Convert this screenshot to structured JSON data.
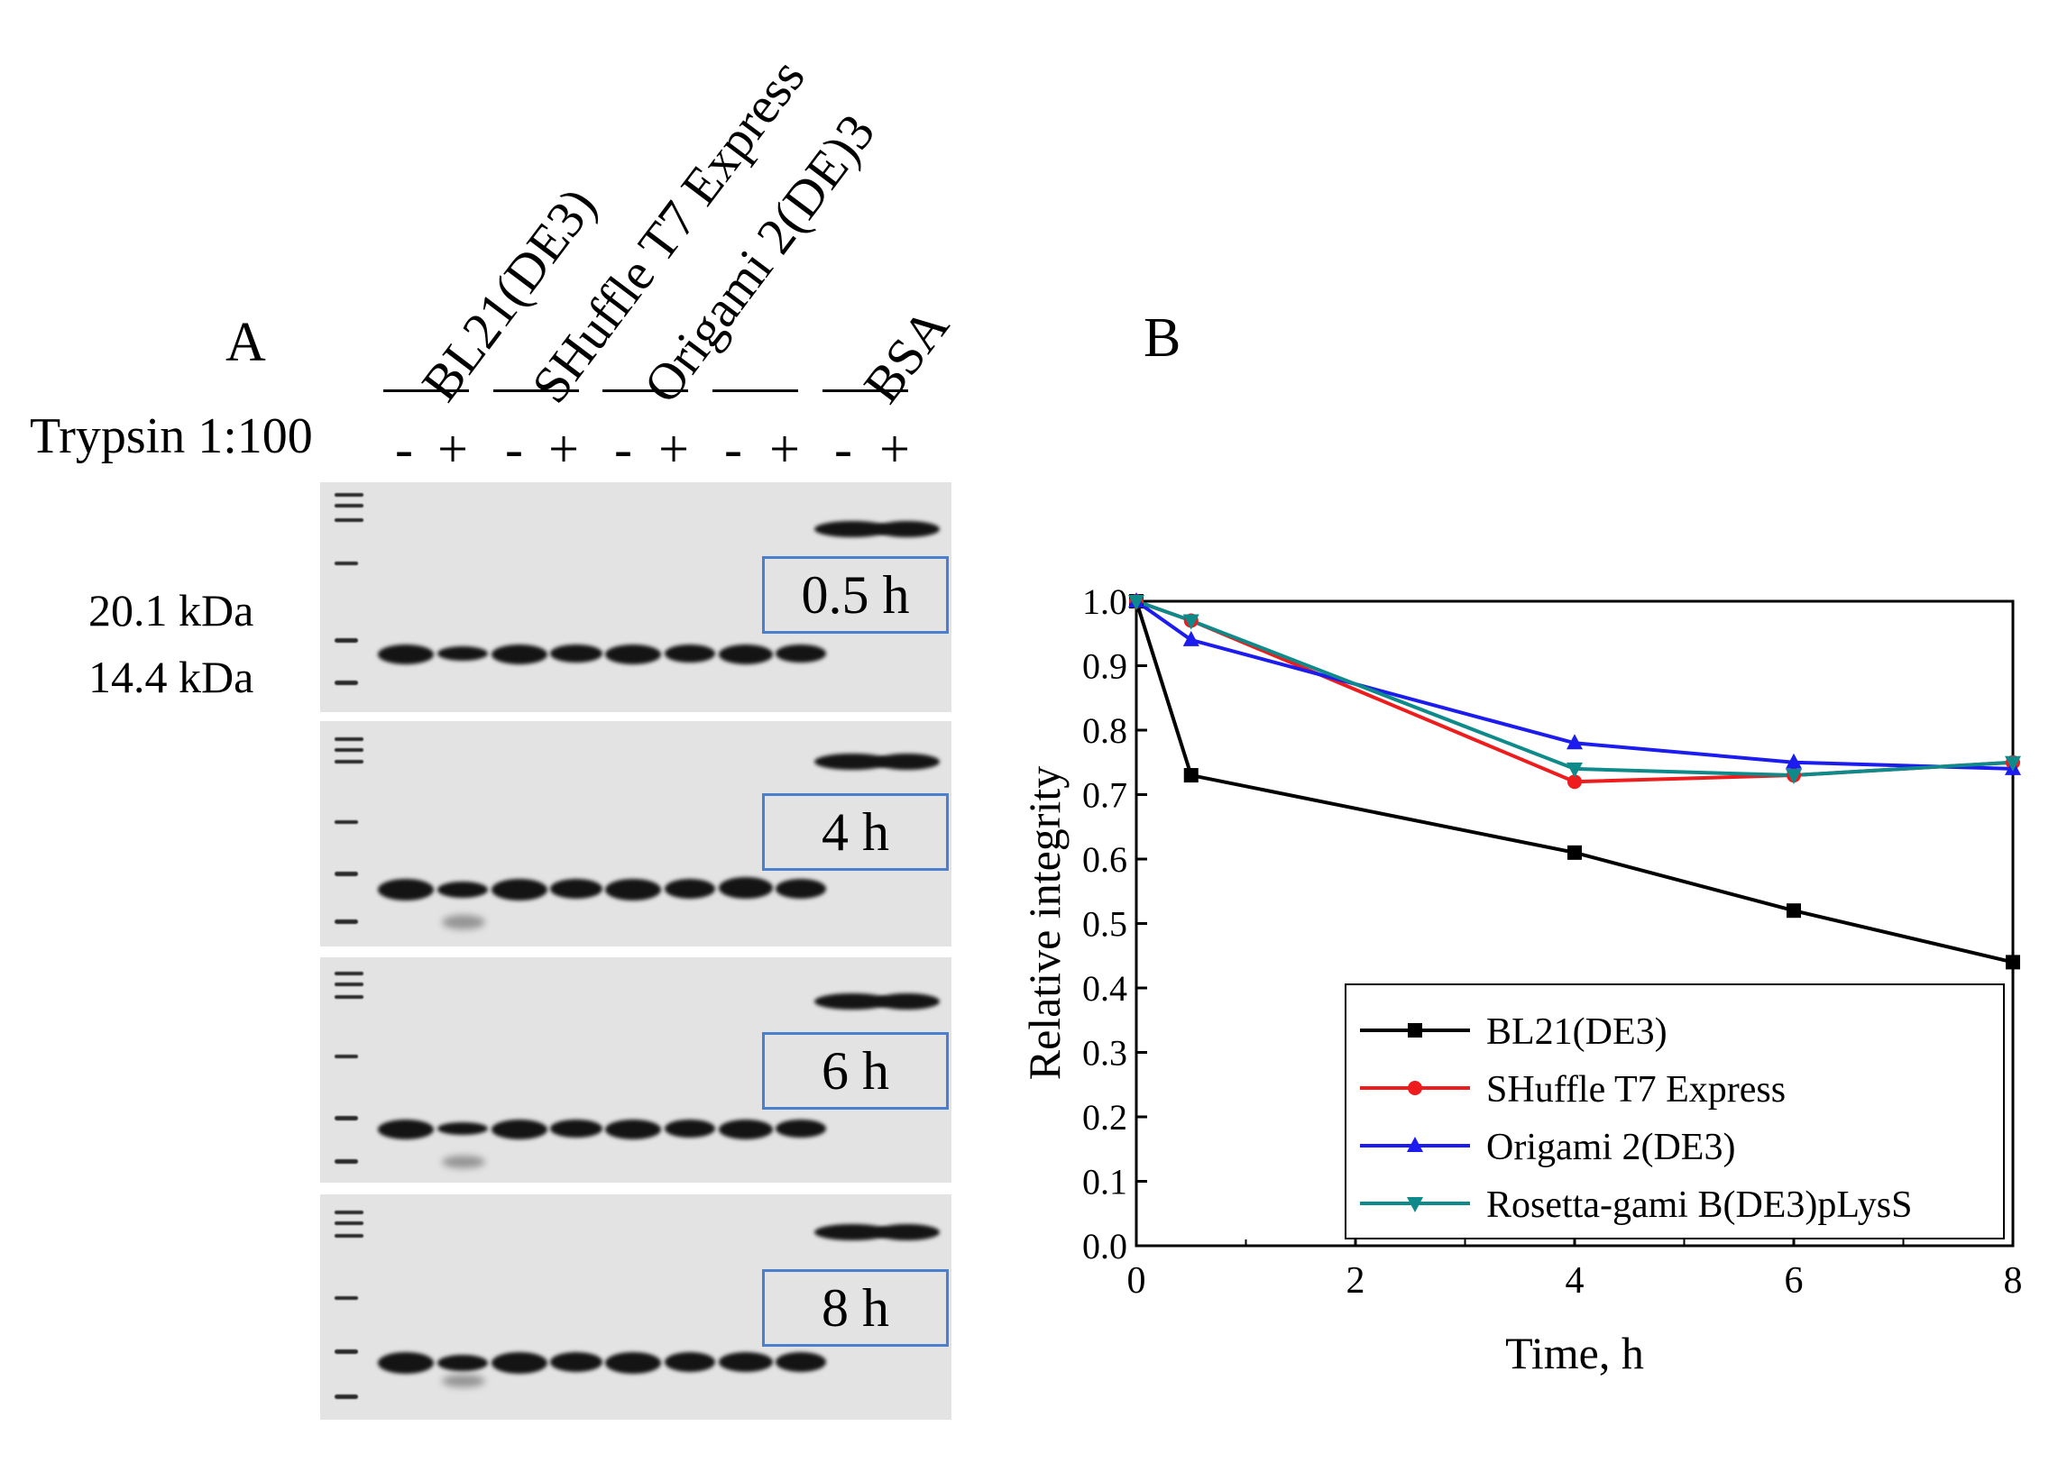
{
  "panel_a": {
    "letter": "A",
    "strains": [
      "BL21(DE3)",
      "SHuffle T7 Express",
      "Origami 2(DE)3",
      "",
      "BSA"
    ],
    "trypsin_label": "Trypsin 1:100",
    "lane_signs": [
      "-",
      "+",
      "-",
      "+",
      "-",
      "+",
      "-",
      "+",
      "-",
      "+"
    ],
    "mw_markers": [
      "20.1 kDa",
      "14.4 kDa"
    ],
    "time_points": [
      "0.5 h",
      "4 h",
      "6 h",
      "8 h"
    ]
  },
  "panel_b": {
    "letter": "B"
  },
  "chart_data": {
    "type": "line",
    "title": "",
    "xlabel": "Time, h",
    "ylabel": "Relative integrity",
    "xlim": [
      0,
      8
    ],
    "ylim": [
      0.0,
      1.0
    ],
    "x_ticks": [
      "0",
      "2",
      "4",
      "6",
      "8"
    ],
    "y_ticks": [
      "0.0",
      "0.1",
      "0.2",
      "0.3",
      "0.4",
      "0.5",
      "0.6",
      "0.7",
      "0.8",
      "0.9",
      "1.0"
    ],
    "legend_position": "bottom-right",
    "series": [
      {
        "name": "BL21(DE3)",
        "color": "#000000",
        "marker": "square",
        "x": [
          0,
          0.5,
          4,
          6,
          8
        ],
        "y": [
          1.0,
          0.73,
          0.61,
          0.52,
          0.44
        ]
      },
      {
        "name": "SHuffle T7 Express",
        "color": "#ee1c1c",
        "marker": "circle",
        "x": [
          0,
          0.5,
          4,
          6,
          8
        ],
        "y": [
          1.0,
          0.97,
          0.72,
          0.73,
          0.75
        ]
      },
      {
        "name": "Origami 2(DE3)",
        "color": "#1c1cee",
        "marker": "triangle-up",
        "x": [
          0,
          0.5,
          4,
          6,
          8
        ],
        "y": [
          1.0,
          0.94,
          0.78,
          0.75,
          0.74
        ]
      },
      {
        "name": "Rosetta-gami B(DE3)pLysS",
        "color": "#0f8a8a",
        "marker": "triangle-down",
        "x": [
          0,
          0.5,
          4,
          6,
          8
        ],
        "y": [
          1.0,
          0.97,
          0.74,
          0.73,
          0.75
        ]
      }
    ]
  }
}
